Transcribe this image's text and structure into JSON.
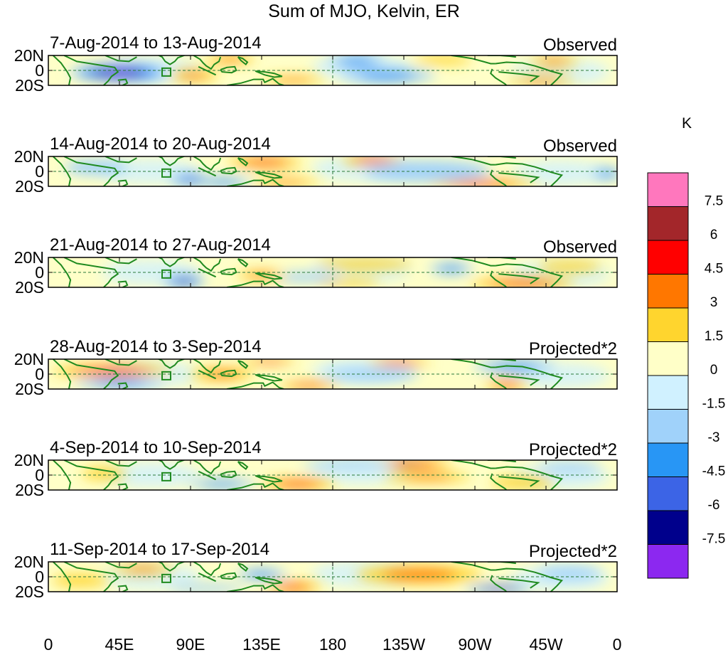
{
  "title": "Sum of MJO, Kelvin, ER",
  "chart_data": {
    "type": "heatmap",
    "title": "Sum of MJO, Kelvin, ER",
    "variable_unit": "K",
    "x_range": [
      0,
      360
    ],
    "y_range": [
      -20,
      20
    ],
    "x_ticks": [
      {
        "lon": 0,
        "label": "0"
      },
      {
        "lon": 45,
        "label": "45E"
      },
      {
        "lon": 90,
        "label": "90E"
      },
      {
        "lon": 135,
        "label": "135E"
      },
      {
        "lon": 180,
        "label": "180"
      },
      {
        "lon": 225,
        "label": "135W"
      },
      {
        "lon": 270,
        "label": "90W"
      },
      {
        "lon": 315,
        "label": "45W"
      },
      {
        "lon": 360,
        "label": "0"
      }
    ],
    "y_ticks": [
      {
        "lat": 20,
        "label": "20N"
      },
      {
        "lat": 0,
        "label": "0"
      },
      {
        "lat": -20,
        "label": "20S"
      }
    ],
    "colorbar": {
      "label": "K",
      "levels": [
        "7.5",
        "6",
        "4.5",
        "3",
        "1.5",
        "0",
        "-1.5",
        "-3",
        "-4.5",
        "-6",
        "-7.5"
      ],
      "colors": [
        "#ff77bd",
        "#a3262a",
        "#ff0000",
        "#ff7700",
        "#ffd52e",
        "#ffffc8",
        "#d0f1ff",
        "#a0d2fa",
        "#2896f5",
        "#3c64e6",
        "#00008c",
        "#8c28f0"
      ]
    },
    "panels": [
      {
        "date_range": "7-Aug-2014 to 13-Aug-2014",
        "status": "Observed",
        "blobs": [
          {
            "lon": 45,
            "lat": -3,
            "rx": 32,
            "ry": 11,
            "value": -8
          },
          {
            "lon": 92,
            "lat": -7,
            "rx": 16,
            "ry": 7,
            "value": 3.5
          },
          {
            "lon": 155,
            "lat": -13,
            "rx": 20,
            "ry": 5,
            "value": 3
          },
          {
            "lon": 115,
            "lat": 15,
            "rx": 16,
            "ry": 6,
            "value": 2.5
          },
          {
            "lon": 195,
            "lat": 12,
            "rx": 18,
            "ry": 8,
            "value": -3
          },
          {
            "lon": 215,
            "lat": -7,
            "rx": 30,
            "ry": 9,
            "value": -2.5
          },
          {
            "lon": 312,
            "lat": -14,
            "rx": 22,
            "ry": 5,
            "value": 3.5
          },
          {
            "lon": 320,
            "lat": 12,
            "rx": 16,
            "ry": 6,
            "value": 3
          },
          {
            "lon": 250,
            "lat": 14,
            "rx": 18,
            "ry": 6,
            "value": 2
          }
        ]
      },
      {
        "date_range": "14-Aug-2014 to 20-Aug-2014",
        "status": "Observed",
        "blobs": [
          {
            "lon": 137,
            "lat": 12,
            "rx": 24,
            "ry": 7,
            "value": 4
          },
          {
            "lon": 205,
            "lat": 15,
            "rx": 20,
            "ry": 6,
            "value": 4.5
          },
          {
            "lon": 275,
            "lat": -17,
            "rx": 34,
            "ry": 6,
            "value": 5
          },
          {
            "lon": 110,
            "lat": -14,
            "rx": 20,
            "ry": 6,
            "value": -3.5
          },
          {
            "lon": 150,
            "lat": -15,
            "rx": 22,
            "ry": 5,
            "value": 3.5
          },
          {
            "lon": 90,
            "lat": -11,
            "rx": 14,
            "ry": 7,
            "value": -4.5
          },
          {
            "lon": 240,
            "lat": 0,
            "rx": 40,
            "ry": 14,
            "value": -2
          },
          {
            "lon": 354,
            "lat": -3,
            "rx": 10,
            "ry": 7,
            "value": -3.5
          },
          {
            "lon": 30,
            "lat": 5,
            "rx": 20,
            "ry": 10,
            "value": -1.5
          }
        ]
      },
      {
        "date_range": "21-Aug-2014 to 27-Aug-2014",
        "status": "Observed",
        "blobs": [
          {
            "lon": 86,
            "lat": -12,
            "rx": 14,
            "ry": 7,
            "value": -6
          },
          {
            "lon": 300,
            "lat": -15,
            "rx": 34,
            "ry": 7,
            "value": 4.5
          },
          {
            "lon": 200,
            "lat": 11,
            "rx": 30,
            "ry": 7,
            "value": 2
          },
          {
            "lon": 255,
            "lat": 5,
            "rx": 14,
            "ry": 7,
            "value": -3.5
          },
          {
            "lon": 160,
            "lat": -6,
            "rx": 25,
            "ry": 6,
            "value": -2
          },
          {
            "lon": 135,
            "lat": -4,
            "rx": 16,
            "ry": 6,
            "value": 2.5
          },
          {
            "lon": 190,
            "lat": -14,
            "rx": 20,
            "ry": 5,
            "value": 2
          },
          {
            "lon": 330,
            "lat": 8,
            "rx": 20,
            "ry": 7,
            "value": 2
          }
        ]
      },
      {
        "date_range": "28-Aug-2014 to 3-Sep-2014",
        "status": "Projected*2",
        "blobs": [
          {
            "lon": 40,
            "lat": 4,
            "rx": 38,
            "ry": 8,
            "value": 4
          },
          {
            "lon": 140,
            "lat": 17,
            "rx": 18,
            "ry": 4,
            "value": 5
          },
          {
            "lon": 222,
            "lat": 15,
            "rx": 20,
            "ry": 5,
            "value": 4.5
          },
          {
            "lon": 165,
            "lat": -16,
            "rx": 20,
            "ry": 5,
            "value": 4
          },
          {
            "lon": 290,
            "lat": -14,
            "rx": 14,
            "ry": 6,
            "value": 5
          },
          {
            "lon": 45,
            "lat": -12,
            "rx": 28,
            "ry": 7,
            "value": -3
          },
          {
            "lon": 295,
            "lat": 10,
            "rx": 26,
            "ry": 8,
            "value": -2.5
          },
          {
            "lon": 205,
            "lat": 0,
            "rx": 30,
            "ry": 8,
            "value": -1.5
          },
          {
            "lon": 110,
            "lat": 0,
            "rx": 20,
            "ry": 8,
            "value": 2.5
          }
        ]
      },
      {
        "date_range": "4-Sep-2014 to 10-Sep-2014",
        "status": "Projected*2",
        "blobs": [
          {
            "lon": 228,
            "lat": 15,
            "rx": 28,
            "ry": 6,
            "value": 6.5
          },
          {
            "lon": 158,
            "lat": -12,
            "rx": 24,
            "ry": 7,
            "value": 4.5
          },
          {
            "lon": 110,
            "lat": -12,
            "rx": 22,
            "ry": 6,
            "value": -3.5
          },
          {
            "lon": 190,
            "lat": 14,
            "rx": 30,
            "ry": 5,
            "value": -1.5
          },
          {
            "lon": 240,
            "lat": -3,
            "rx": 28,
            "ry": 6,
            "value": 3
          },
          {
            "lon": 35,
            "lat": 2,
            "rx": 14,
            "ry": 8,
            "value": 2
          },
          {
            "lon": 300,
            "lat": -10,
            "rx": 20,
            "ry": 8,
            "value": 2
          },
          {
            "lon": 330,
            "lat": 10,
            "rx": 20,
            "ry": 6,
            "value": -1.5
          }
        ]
      },
      {
        "date_range": "11-Sep-2014 to 17-Sep-2014",
        "status": "Projected*2",
        "blobs": [
          {
            "lon": 285,
            "lat": -16,
            "rx": 22,
            "ry": 5,
            "value": -7
          },
          {
            "lon": 155,
            "lat": -14,
            "rx": 18,
            "ry": 7,
            "value": 5
          },
          {
            "lon": 235,
            "lat": 3,
            "rx": 40,
            "ry": 12,
            "value": 3.5
          },
          {
            "lon": 135,
            "lat": 3,
            "rx": 16,
            "ry": 7,
            "value": -2.5
          },
          {
            "lon": 60,
            "lat": 10,
            "rx": 20,
            "ry": 6,
            "value": 2.5
          },
          {
            "lon": 100,
            "lat": -15,
            "rx": 24,
            "ry": 5,
            "value": -2
          },
          {
            "lon": 20,
            "lat": -5,
            "rx": 18,
            "ry": 8,
            "value": 2
          },
          {
            "lon": 330,
            "lat": 5,
            "rx": 20,
            "ry": 8,
            "value": -1.5
          }
        ]
      }
    ]
  }
}
